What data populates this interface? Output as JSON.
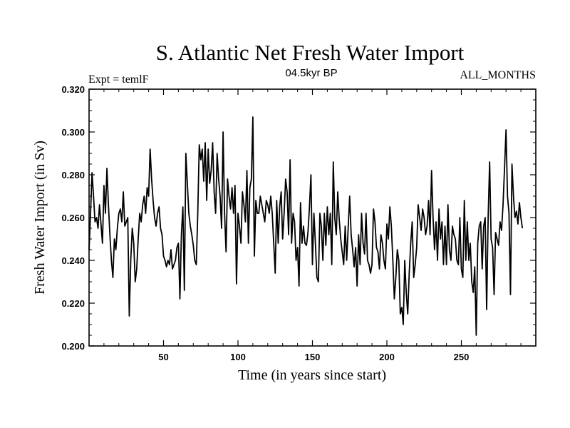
{
  "chart_data": {
    "type": "line",
    "title": "S. Atlantic Net Fresh Water Import",
    "subtitle_left": "Expt = temlF",
    "subtitle_center": "04.5kyr BP",
    "subtitle_right": "ALL_MONTHS",
    "xlabel": "Time (in years since start)",
    "ylabel": "Fresh Water Import (in Sv)",
    "xlim": [
      0,
      300
    ],
    "ylim": [
      0.2,
      0.32
    ],
    "xticks": [
      50,
      100,
      150,
      200,
      250
    ],
    "xtick_labels": [
      "50",
      "100",
      "150",
      "200",
      "250"
    ],
    "yticks": [
      0.2,
      0.22,
      0.24,
      0.26,
      0.28,
      0.3,
      0.32
    ],
    "ytick_labels": [
      "0.200",
      "0.220",
      "0.240",
      "0.260",
      "0.280",
      "0.300",
      "0.320"
    ],
    "grid": false,
    "series": [
      {
        "name": "Net Fresh Water Import",
        "x_start": 0,
        "x_step": 1,
        "values": [
          0.245,
          0.262,
          0.281,
          0.27,
          0.258,
          0.26,
          0.255,
          0.266,
          0.257,
          0.248,
          0.275,
          0.262,
          0.283,
          0.266,
          0.252,
          0.24,
          0.232,
          0.25,
          0.245,
          0.255,
          0.262,
          0.264,
          0.258,
          0.272,
          0.256,
          0.258,
          0.26,
          0.214,
          0.24,
          0.255,
          0.248,
          0.23,
          0.236,
          0.25,
          0.262,
          0.258,
          0.266,
          0.27,
          0.262,
          0.274,
          0.27,
          0.292,
          0.278,
          0.268,
          0.26,
          0.256,
          0.262,
          0.265,
          0.255,
          0.252,
          0.242,
          0.24,
          0.237,
          0.24,
          0.238,
          0.245,
          0.236,
          0.238,
          0.24,
          0.246,
          0.248,
          0.222,
          0.252,
          0.265,
          0.226,
          0.29,
          0.276,
          0.262,
          0.256,
          0.252,
          0.247,
          0.24,
          0.238,
          0.262,
          0.294,
          0.287,
          0.292,
          0.277,
          0.295,
          0.268,
          0.292,
          0.276,
          0.282,
          0.295,
          0.272,
          0.262,
          0.29,
          0.278,
          0.27,
          0.255,
          0.3,
          0.262,
          0.244,
          0.278,
          0.27,
          0.264,
          0.274,
          0.262,
          0.275,
          0.229,
          0.262,
          0.256,
          0.248,
          0.272,
          0.266,
          0.258,
          0.282,
          0.248,
          0.274,
          0.278,
          0.307,
          0.242,
          0.268,
          0.262,
          0.262,
          0.27,
          0.266,
          0.262,
          0.258,
          0.268,
          0.266,
          0.262,
          0.27,
          0.262,
          0.248,
          0.234,
          0.268,
          0.248,
          0.265,
          0.272,
          0.25,
          0.262,
          0.278,
          0.272,
          0.252,
          0.287,
          0.248,
          0.262,
          0.258,
          0.24,
          0.246,
          0.228,
          0.267,
          0.248,
          0.256,
          0.248,
          0.247,
          0.253,
          0.265,
          0.28,
          0.238,
          0.262,
          0.248,
          0.232,
          0.23,
          0.262,
          0.256,
          0.24,
          0.262,
          0.247,
          0.265,
          0.252,
          0.262,
          0.238,
          0.286,
          0.26,
          0.252,
          0.272,
          0.259,
          0.25,
          0.244,
          0.238,
          0.256,
          0.24,
          0.255,
          0.27,
          0.252,
          0.245,
          0.237,
          0.246,
          0.228,
          0.252,
          0.238,
          0.262,
          0.248,
          0.243,
          0.262,
          0.24,
          0.238,
          0.234,
          0.238,
          0.264,
          0.258,
          0.246,
          0.244,
          0.236,
          0.252,
          0.248,
          0.24,
          0.236,
          0.257,
          0.25,
          0.265,
          0.256,
          0.24,
          0.222,
          0.232,
          0.245,
          0.24,
          0.215,
          0.218,
          0.21,
          0.24,
          0.225,
          0.215,
          0.234,
          0.248,
          0.258,
          0.232,
          0.238,
          0.246,
          0.266,
          0.26,
          0.254,
          0.264,
          0.26,
          0.252,
          0.256,
          0.268,
          0.252,
          0.282,
          0.26,
          0.245,
          0.258,
          0.24,
          0.264,
          0.25,
          0.258,
          0.238,
          0.256,
          0.238,
          0.266,
          0.245,
          0.24,
          0.256,
          0.252,
          0.25,
          0.24,
          0.238,
          0.26,
          0.236,
          0.232,
          0.268,
          0.24,
          0.258,
          0.24,
          0.248,
          0.23,
          0.225,
          0.237,
          0.205,
          0.248,
          0.256,
          0.258,
          0.236,
          0.256,
          0.26,
          0.217,
          0.26,
          0.286,
          0.25,
          0.246,
          0.224,
          0.253,
          0.25,
          0.247,
          0.258,
          0.254,
          0.266,
          0.283,
          0.301,
          0.27,
          0.262,
          0.224,
          0.285,
          0.27,
          0.26,
          0.263,
          0.257,
          0.267,
          0.26,
          0.255
        ]
      }
    ]
  }
}
